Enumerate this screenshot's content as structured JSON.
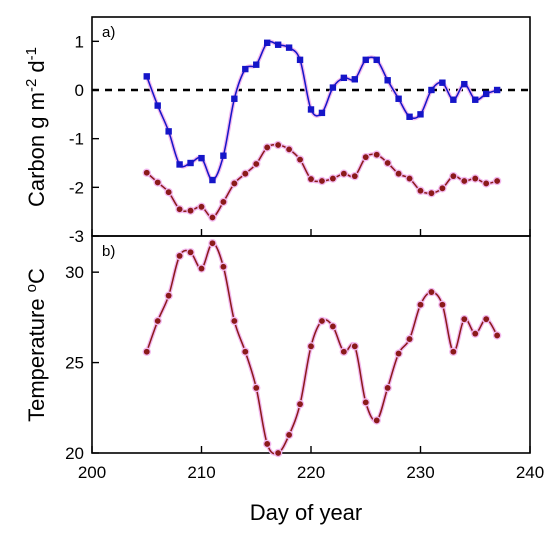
{
  "chart_data": [
    {
      "type": "line",
      "panel_label": "a)",
      "ylabel": "Carbon g m⁻² d⁻¹",
      "xlim": [
        200,
        240
      ],
      "ylim": [
        -3,
        1.5
      ],
      "yticks": [
        1,
        0,
        -1,
        -2,
        -3
      ],
      "zero_line": true,
      "series": [
        {
          "color": "#1515c8",
          "marker": "square",
          "x": [
            205,
            206,
            207,
            208,
            209,
            210,
            211,
            212,
            213,
            214,
            215,
            216,
            217,
            218,
            219,
            220,
            221,
            222,
            223,
            224,
            225,
            226,
            227,
            228,
            229,
            230,
            231,
            232,
            233,
            234,
            235,
            236,
            237
          ],
          "y": [
            0.28,
            -0.32,
            -0.85,
            -1.53,
            -1.5,
            -1.4,
            -1.85,
            -1.35,
            -0.18,
            0.43,
            0.52,
            0.97,
            0.93,
            0.87,
            0.62,
            -0.4,
            -0.47,
            0.05,
            0.25,
            0.22,
            0.62,
            0.62,
            0.2,
            -0.18,
            -0.55,
            -0.5,
            0.0,
            0.15,
            -0.2,
            0.12,
            -0.2,
            -0.08,
            0.0
          ]
        },
        {
          "color": "#8b1a1a",
          "marker": "circle",
          "x": [
            205,
            206,
            207,
            208,
            209,
            210,
            211,
            212,
            213,
            214,
            215,
            216,
            217,
            218,
            219,
            220,
            221,
            222,
            223,
            224,
            225,
            226,
            227,
            228,
            229,
            230,
            231,
            232,
            233,
            234,
            235,
            236,
            237
          ],
          "y": [
            -1.7,
            -1.9,
            -2.1,
            -2.45,
            -2.48,
            -2.4,
            -2.62,
            -2.3,
            -1.92,
            -1.72,
            -1.52,
            -1.18,
            -1.13,
            -1.22,
            -1.43,
            -1.83,
            -1.87,
            -1.82,
            -1.72,
            -1.77,
            -1.38,
            -1.33,
            -1.5,
            -1.72,
            -1.82,
            -2.07,
            -2.12,
            -2.02,
            -1.77,
            -1.87,
            -1.82,
            -1.92,
            -1.87
          ]
        }
      ]
    },
    {
      "type": "line",
      "panel_label": "b)",
      "xlabel": "Day of year",
      "ylabel": "Temperature °C",
      "xlim": [
        200,
        240
      ],
      "ylim": [
        20,
        32
      ],
      "xticks": [
        200,
        210,
        220,
        230,
        240
      ],
      "yticks": [
        20,
        25,
        30
      ],
      "series": [
        {
          "color": "#8b1a1a",
          "marker": "circle",
          "x": [
            205,
            206,
            207,
            208,
            209,
            210,
            211,
            212,
            213,
            214,
            215,
            216,
            217,
            218,
            219,
            220,
            221,
            222,
            223,
            224,
            225,
            226,
            227,
            228,
            229,
            230,
            231,
            232,
            233,
            234,
            235,
            236,
            237
          ],
          "y": [
            25.6,
            27.3,
            28.7,
            30.9,
            31.1,
            30.2,
            31.6,
            30.3,
            27.3,
            25.6,
            23.6,
            20.5,
            20.0,
            21.0,
            22.7,
            25.9,
            27.3,
            27.0,
            25.6,
            25.9,
            22.8,
            21.8,
            23.6,
            25.5,
            26.3,
            28.2,
            28.9,
            28.2,
            25.6,
            27.4,
            26.6,
            27.4,
            26.5
          ]
        }
      ]
    }
  ]
}
